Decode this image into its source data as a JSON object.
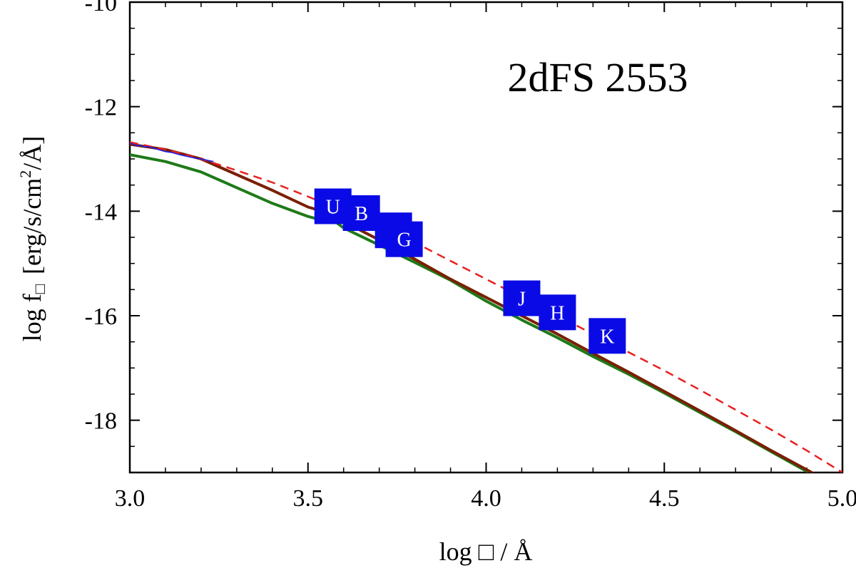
{
  "chart_data": {
    "type": "line",
    "title": "2dFS 2553",
    "xlabel": "log □ / Å",
    "ylabel_parts": {
      "prefix": "log f",
      "subscript": "□",
      "bracket_text": "[erg/s/cm",
      "superscript": "2",
      "suffix": "/Å]"
    },
    "xlim": [
      3.0,
      5.0
    ],
    "ylim": [
      -19.0,
      -10.0
    ],
    "xticks": [
      "3.0",
      "3.5",
      "4.0",
      "4.5",
      "5.0"
    ],
    "yticks": [
      "-10",
      "-12",
      "-14",
      "-16",
      "-18"
    ],
    "grid": false,
    "series": [
      {
        "role": "observed-spectrum",
        "color": "#2020e8",
        "x": [
          3.0,
          3.01,
          3.02,
          3.03,
          3.04,
          3.05,
          3.06,
          3.07,
          3.08,
          3.09,
          3.1,
          3.12,
          3.14,
          3.16,
          3.18,
          3.2,
          3.22,
          3.235
        ],
        "values": [
          -12.7,
          -12.72,
          -12.75,
          -12.74,
          -12.77,
          -12.76,
          -12.78,
          -12.8,
          -12.82,
          -12.84,
          -12.86,
          -12.88,
          -12.92,
          -12.95,
          -12.98,
          -13.0,
          -13.03,
          -13.05
        ]
      },
      {
        "role": "model-combined",
        "color": "#7a1f05",
        "x": [
          3.0,
          3.1,
          3.2,
          3.3,
          3.4,
          3.5,
          3.565,
          3.6,
          3.7,
          3.8,
          3.9,
          4.0,
          4.1,
          4.2,
          4.3,
          4.4,
          4.5,
          4.6,
          4.7,
          4.8,
          4.9,
          4.93
        ],
        "values": [
          -12.72,
          -12.82,
          -13.0,
          -13.3,
          -13.6,
          -13.92,
          -14.05,
          -14.2,
          -14.55,
          -14.92,
          -15.3,
          -15.65,
          -16.0,
          -16.35,
          -16.72,
          -17.08,
          -17.45,
          -17.82,
          -18.2,
          -18.58,
          -18.95,
          -19.06
        ]
      },
      {
        "role": "model-component",
        "color": "#1e7a18",
        "x": [
          3.0,
          3.1,
          3.2,
          3.3,
          3.4,
          3.5,
          3.565,
          3.566,
          3.6,
          3.7,
          3.8,
          3.9,
          4.0,
          4.1,
          4.2,
          4.3,
          4.4,
          4.5,
          4.6,
          4.7,
          4.8,
          4.9,
          4.93
        ],
        "values": [
          -12.92,
          -13.05,
          -13.25,
          -13.55,
          -13.85,
          -14.1,
          -14.22,
          -14.15,
          -14.32,
          -14.65,
          -14.98,
          -15.32,
          -15.72,
          -16.08,
          -16.42,
          -16.78,
          -17.12,
          -17.48,
          -17.85,
          -18.22,
          -18.6,
          -18.98,
          -19.06
        ]
      },
      {
        "role": "model-dashed",
        "color": "#e82020",
        "dashed": true,
        "x": [
          3.0,
          3.1,
          3.2,
          3.3,
          3.4,
          3.5,
          3.6,
          3.7,
          3.8,
          3.9,
          4.0,
          4.1,
          4.2,
          4.3,
          4.4,
          4.5,
          4.6,
          4.7,
          4.8,
          4.9,
          5.0
        ],
        "values": [
          -12.68,
          -12.82,
          -13.0,
          -13.22,
          -13.45,
          -13.72,
          -14.0,
          -14.3,
          -14.6,
          -14.95,
          -15.3,
          -15.65,
          -16.0,
          -16.35,
          -16.7,
          -17.05,
          -17.42,
          -17.8,
          -18.18,
          -18.58,
          -19.0
        ]
      }
    ],
    "photometry": [
      {
        "label": "U",
        "x": 3.57,
        "y": -13.92
      },
      {
        "label": "B",
        "x": 3.65,
        "y": -14.05
      },
      {
        "label": "V",
        "x": 3.74,
        "y": -14.38
      },
      {
        "label": "G",
        "x": 3.77,
        "y": -14.55
      },
      {
        "label": "J",
        "x": 4.1,
        "y": -15.68
      },
      {
        "label": "H",
        "x": 4.2,
        "y": -15.95
      },
      {
        "label": "K",
        "x": 4.34,
        "y": -16.4
      }
    ],
    "photometry_color": "#0a0ae6"
  }
}
